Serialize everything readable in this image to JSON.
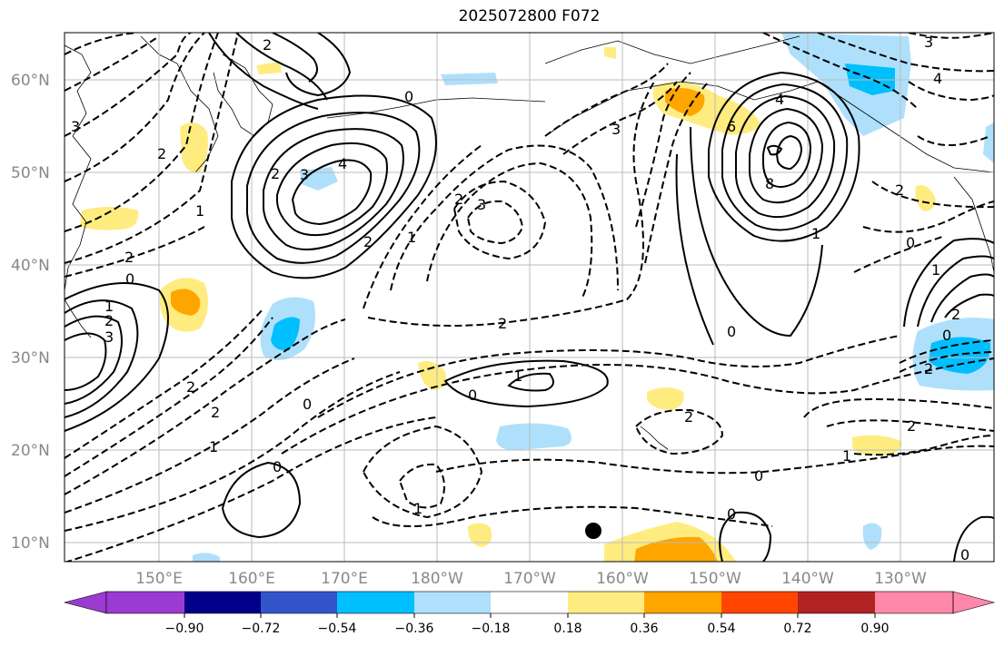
{
  "title": "2025072800 F072",
  "map": {
    "lat_labels": [
      "60°N",
      "50°N",
      "40°N",
      "30°N",
      "20°N",
      "10°N"
    ],
    "lon_labels": [
      "150°E",
      "160°E",
      "170°E",
      "180°W",
      "170°W",
      "160°W",
      "150°W",
      "140°W",
      "130°W"
    ],
    "grid": true
  },
  "colorbar": {
    "ticks": [
      "−0.90",
      "−0.72",
      "−0.54",
      "−0.36",
      "−0.18",
      "0.18",
      "0.36",
      "0.54",
      "0.72",
      "0.90"
    ],
    "colors": [
      "#9b3bd1",
      "#000088",
      "#3355cc",
      "#00bfff",
      "#aee0fb",
      "#ffffff",
      "#ffec80",
      "#ffa500",
      "#ff4500",
      "#b22222",
      "#ff88aa"
    ]
  },
  "contour_labels": [
    {
      "text": "2"
    },
    {
      "text": "0"
    },
    {
      "text": "3"
    },
    {
      "text": "2"
    },
    {
      "text": "2"
    },
    {
      "text": "3"
    },
    {
      "text": "4"
    },
    {
      "text": "2"
    },
    {
      "text": "1"
    },
    {
      "text": "2"
    },
    {
      "text": "3"
    },
    {
      "text": "2"
    },
    {
      "text": "0"
    },
    {
      "text": "1"
    },
    {
      "text": "2"
    },
    {
      "text": "3"
    },
    {
      "text": "1"
    },
    {
      "text": "2"
    },
    {
      "text": "2"
    },
    {
      "text": "0"
    },
    {
      "text": "2"
    },
    {
      "text": "1"
    },
    {
      "text": "1"
    },
    {
      "text": "0"
    },
    {
      "text": "0"
    },
    {
      "text": "2"
    },
    {
      "text": "1"
    },
    {
      "text": "4"
    },
    {
      "text": "8"
    },
    {
      "text": "6"
    },
    {
      "text": "3"
    },
    {
      "text": "1"
    },
    {
      "text": "0"
    },
    {
      "text": "2"
    },
    {
      "text": "0"
    },
    {
      "text": "3"
    },
    {
      "text": "4"
    },
    {
      "text": "0"
    },
    {
      "text": "2"
    },
    {
      "text": "1"
    },
    {
      "text": "0"
    },
    {
      "text": "2"
    },
    {
      "text": "0"
    },
    {
      "text": "1"
    },
    {
      "text": "0"
    },
    {
      "text": "2"
    }
  ]
}
